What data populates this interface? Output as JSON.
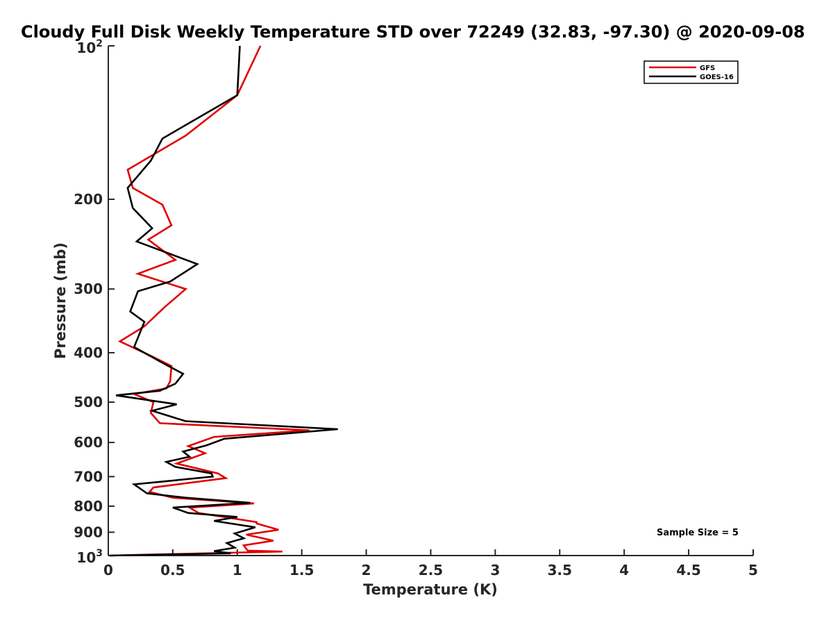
{
  "chart_data": {
    "type": "line",
    "title": "Cloudy Full Disk Weekly Temperature STD over 72249 (32.83, -97.30) @ 2020-09-08",
    "xlabel": "Temperature (K)",
    "ylabel": "Pressure (mb)",
    "xlim": [
      0,
      5
    ],
    "ylim": [
      100,
      1000
    ],
    "y_scale": "log",
    "y_reversed": true,
    "x_ticks": [
      0,
      0.5,
      1,
      1.5,
      2,
      2.5,
      3,
      3.5,
      4,
      4.5,
      5
    ],
    "x_tick_labels": [
      "0",
      "0.5",
      "1",
      "1.5",
      "2",
      "2.5",
      "3",
      "3.5",
      "4",
      "4.5",
      "5"
    ],
    "y_ticks": [
      100,
      200,
      300,
      400,
      500,
      600,
      700,
      800,
      900,
      1000
    ],
    "y_tick_labels": {
      "top_base": "10",
      "top_exp": "2",
      "bottom_base": "10",
      "bottom_exp": "3",
      "middle": [
        "200",
        "300",
        "400",
        "500",
        "600",
        "700",
        "800",
        "900"
      ]
    },
    "grid": false,
    "legend_position": "top-right",
    "annotation": "Sample Size = 5",
    "series": [
      {
        "name": "GFS",
        "color": "#e00000",
        "points": [
          [
            1.18,
            100
          ],
          [
            1.0,
            125
          ],
          [
            0.6,
            150
          ],
          [
            0.15,
            175
          ],
          [
            0.19,
            190
          ],
          [
            0.42,
            205
          ],
          [
            0.49,
            225
          ],
          [
            0.31,
            240
          ],
          [
            0.52,
            263
          ],
          [
            0.23,
            280
          ],
          [
            0.6,
            300
          ],
          [
            0.44,
            325
          ],
          [
            0.28,
            355
          ],
          [
            0.09,
            380
          ],
          [
            0.35,
            408
          ],
          [
            0.49,
            425
          ],
          [
            0.48,
            455
          ],
          [
            0.45,
            470
          ],
          [
            0.2,
            482
          ],
          [
            0.35,
            500
          ],
          [
            0.33,
            525
          ],
          [
            0.4,
            550
          ],
          [
            1.56,
            568
          ],
          [
            0.82,
            585
          ],
          [
            0.62,
            610
          ],
          [
            0.75,
            630
          ],
          [
            0.53,
            660
          ],
          [
            0.85,
            690
          ],
          [
            0.91,
            705
          ],
          [
            0.35,
            735
          ],
          [
            0.32,
            750
          ],
          [
            0.5,
            770
          ],
          [
            1.13,
            790
          ],
          [
            0.63,
            805
          ],
          [
            0.7,
            825
          ],
          [
            1.15,
            860
          ],
          [
            1.15,
            865
          ],
          [
            1.32,
            890
          ],
          [
            1.07,
            910
          ],
          [
            1.28,
            935
          ],
          [
            1.05,
            955
          ],
          [
            1.08,
            978
          ],
          [
            1.35,
            982
          ],
          [
            0.01,
            1000
          ]
        ]
      },
      {
        "name": "GOES-16",
        "color": "#000000",
        "points": [
          [
            1.02,
            100
          ],
          [
            1.0,
            125
          ],
          [
            0.42,
            152
          ],
          [
            0.33,
            168
          ],
          [
            0.15,
            190
          ],
          [
            0.19,
            208
          ],
          [
            0.34,
            228
          ],
          [
            0.22,
            242
          ],
          [
            0.69,
            268
          ],
          [
            0.48,
            290
          ],
          [
            0.23,
            303
          ],
          [
            0.17,
            332
          ],
          [
            0.28,
            348
          ],
          [
            0.2,
            390
          ],
          [
            0.43,
            420
          ],
          [
            0.58,
            440
          ],
          [
            0.52,
            460
          ],
          [
            0.4,
            475
          ],
          [
            0.06,
            485
          ],
          [
            0.53,
            505
          ],
          [
            0.34,
            520
          ],
          [
            0.6,
            545
          ],
          [
            1.78,
            565
          ],
          [
            0.9,
            590
          ],
          [
            0.76,
            608
          ],
          [
            0.58,
            625
          ],
          [
            0.63,
            640
          ],
          [
            0.45,
            655
          ],
          [
            0.52,
            670
          ],
          [
            0.8,
            690
          ],
          [
            0.81,
            700
          ],
          [
            0.2,
            725
          ],
          [
            0.3,
            755
          ],
          [
            0.6,
            770
          ],
          [
            1.1,
            788
          ],
          [
            0.5,
            805
          ],
          [
            0.62,
            825
          ],
          [
            1.0,
            840
          ],
          [
            0.82,
            855
          ],
          [
            1.14,
            880
          ],
          [
            0.98,
            905
          ],
          [
            1.05,
            925
          ],
          [
            0.92,
            945
          ],
          [
            0.98,
            965
          ],
          [
            0.82,
            980
          ],
          [
            0.95,
            990
          ],
          [
            0.01,
            1000
          ]
        ]
      }
    ]
  }
}
